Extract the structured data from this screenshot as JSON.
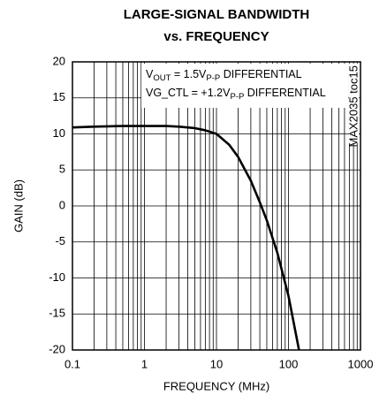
{
  "chart_data": {
    "type": "line",
    "title": [
      "LARGE-SIGNAL BANDWIDTH",
      "vs. FREQUENCY"
    ],
    "x_label": "FREQUENCY (MHz)",
    "y_label": "GAIN (dB)",
    "annotations": [
      [
        "V",
        "OUT",
        " = 1.5V",
        "P-P",
        " DIFFERENTIAL"
      ],
      [
        "VG_CTL = +1.2V",
        "P-P",
        " DIFFERENTIAL"
      ]
    ],
    "side_note": "MAX2035 toc15",
    "x_log": true,
    "grid": true,
    "x": [
      0.1,
      0.2,
      0.5,
      1,
      2,
      3,
      5,
      7,
      10,
      15,
      20,
      30,
      40,
      50,
      70,
      100,
      140
    ],
    "series": [
      {
        "name": "GAIN",
        "color": "#000000",
        "values": [
          10.9,
          11,
          11.1,
          11.1,
          11.1,
          11,
          10.8,
          10.5,
          10,
          8.5,
          6.8,
          3.5,
          0.5,
          -2,
          -6.5,
          -12.5,
          -20
        ]
      }
    ],
    "xlim": [
      0.1,
      1000
    ],
    "xticks": [
      0.1,
      1,
      10,
      100,
      1000
    ],
    "xminorticks": [
      0.2,
      0.3,
      0.4,
      0.5,
      0.6,
      0.7,
      0.8,
      0.9,
      2,
      3,
      4,
      5,
      6,
      7,
      8,
      9,
      20,
      30,
      40,
      50,
      60,
      70,
      80,
      90,
      200,
      300,
      400,
      500,
      600,
      700,
      800,
      900
    ],
    "ylim": [
      -20,
      20
    ],
    "yticks": [
      -20,
      -15,
      -10,
      -5,
      0,
      5,
      10,
      15,
      20
    ]
  }
}
